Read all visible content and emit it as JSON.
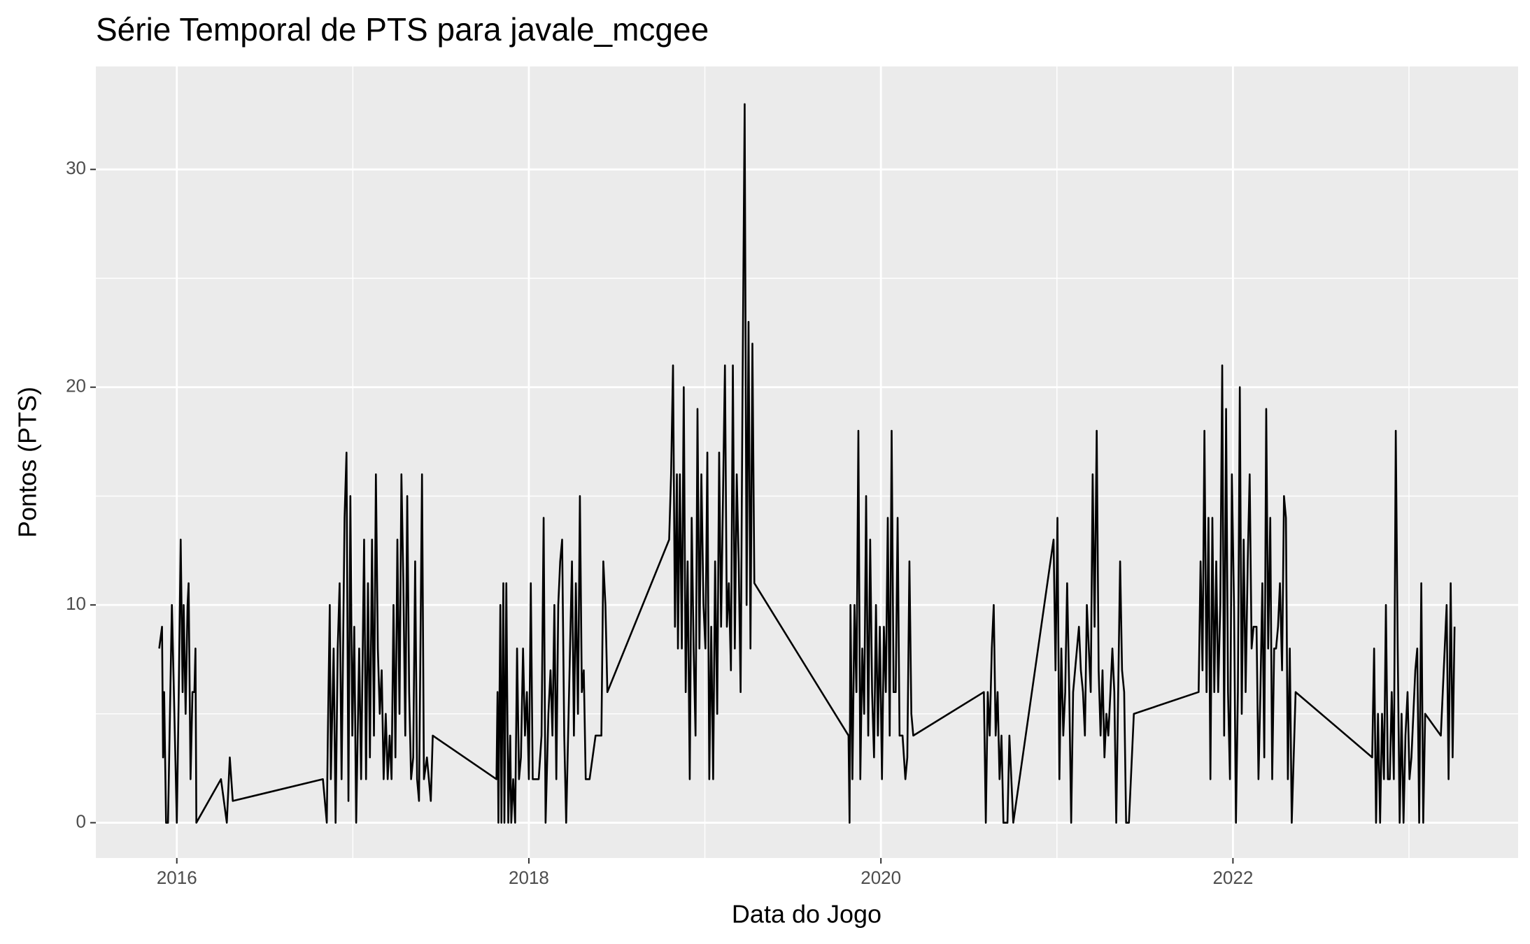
{
  "chart_data": {
    "type": "line",
    "title": "Série Temporal de PTS para javale_mcgee",
    "x_label": "Data do Jogo",
    "y_label": "Pontos (PTS)",
    "color": "#000000",
    "panel_background": "#ebebeb",
    "grid": true,
    "xlim": [
      2015.54,
      2023.62
    ],
    "ylim": [
      -1.62,
      34.73
    ],
    "xticks": [
      2016,
      2018,
      2020,
      2022
    ],
    "yticks": [
      0,
      10,
      20,
      30
    ],
    "x_minor_grid": [
      2017,
      2019,
      2021,
      2023
    ],
    "y_minor_grid": [
      5,
      15,
      25
    ],
    "x": [
      2015.9,
      2015.916,
      2015.922,
      2015.928,
      2015.939,
      2015.95,
      2015.972,
      2015.989,
      2016,
      2016.011,
      2016.022,
      2016.033,
      2016.039,
      2016.05,
      2016.061,
      2016.067,
      2016.078,
      2016.089,
      2016.1,
      2016.106,
      2016.111,
      2016.251,
      2016.284,
      2016.301,
      2016.318,
      2016.83,
      2016.852,
      2016.858,
      2016.869,
      2016.875,
      2016.891,
      2016.902,
      2016.914,
      2016.925,
      2016.936,
      2016.953,
      2016.964,
      2016.975,
      2016.986,
      2016.997,
      2017.008,
      2017.019,
      2017.036,
      2017.047,
      2017.064,
      2017.075,
      2017.086,
      2017.097,
      2017.109,
      2017.12,
      2017.131,
      2017.142,
      2017.153,
      2017.164,
      2017.175,
      2017.187,
      2017.198,
      2017.209,
      2017.22,
      2017.231,
      2017.242,
      2017.253,
      2017.265,
      2017.276,
      2017.287,
      2017.298,
      2017.309,
      2017.32,
      2017.331,
      2017.343,
      2017.354,
      2017.365,
      2017.376,
      2017.393,
      2017.404,
      2017.421,
      2017.443,
      2017.454,
      2017.816,
      2017.822,
      2017.827,
      2017.838,
      2017.844,
      2017.855,
      2017.861,
      2017.872,
      2017.883,
      2017.894,
      2017.9,
      2017.911,
      2017.922,
      2017.933,
      2017.944,
      2017.955,
      2017.967,
      2017.978,
      2017.989,
      2018,
      2018.011,
      2018.022,
      2018.033,
      2018.056,
      2018.072,
      2018.084,
      2018.095,
      2018.111,
      2018.123,
      2018.134,
      2018.145,
      2018.156,
      2018.167,
      2018.178,
      2018.189,
      2018.201,
      2018.212,
      2018.223,
      2018.234,
      2018.245,
      2018.256,
      2018.267,
      2018.279,
      2018.29,
      2018.301,
      2018.312,
      2018.323,
      2018.345,
      2018.379,
      2018.412,
      2018.423,
      2018.435,
      2018.446,
      2018.797,
      2018.808,
      2018.819,
      2018.83,
      2018.841,
      2018.847,
      2018.858,
      2018.869,
      2018.88,
      2018.891,
      2018.902,
      2018.914,
      2018.925,
      2018.936,
      2018.947,
      2018.958,
      2018.969,
      2018.98,
      2018.992,
      2019.003,
      2019.014,
      2019.025,
      2019.036,
      2019.047,
      2019.058,
      2019.07,
      2019.081,
      2019.092,
      2019.103,
      2019.114,
      2019.125,
      2019.136,
      2019.148,
      2019.159,
      2019.17,
      2019.181,
      2019.192,
      2019.203,
      2019.214,
      2019.226,
      2019.237,
      2019.248,
      2019.259,
      2019.27,
      2019.281,
      2019.816,
      2019.822,
      2019.827,
      2019.838,
      2019.85,
      2019.861,
      2019.872,
      2019.883,
      2019.894,
      2019.905,
      2019.916,
      2019.928,
      2019.939,
      2019.95,
      2019.961,
      2019.972,
      2019.983,
      2019.994,
      2020.006,
      2020.017,
      2020.028,
      2020.039,
      2020.05,
      2020.061,
      2020.072,
      2020.084,
      2020.095,
      2020.106,
      2020.123,
      2020.139,
      2020.15,
      2020.162,
      2020.173,
      2020.184,
      2020.585,
      2020.596,
      2020.607,
      2020.618,
      2020.63,
      2020.641,
      2020.652,
      2020.663,
      2020.674,
      2020.685,
      2020.696,
      2020.719,
      2020.73,
      2020.752,
      2020.981,
      2020.992,
      2021.003,
      2021.014,
      2021.025,
      2021.036,
      2021.047,
      2021.058,
      2021.07,
      2021.081,
      2021.092,
      2021.114,
      2021.125,
      2021.136,
      2021.148,
      2021.159,
      2021.17,
      2021.181,
      2021.192,
      2021.203,
      2021.214,
      2021.226,
      2021.237,
      2021.248,
      2021.259,
      2021.27,
      2021.281,
      2021.292,
      2021.304,
      2021.315,
      2021.326,
      2021.337,
      2021.348,
      2021.359,
      2021.37,
      2021.382,
      2021.393,
      2021.409,
      2021.437,
      2021.805,
      2021.816,
      2021.827,
      2021.838,
      2021.85,
      2021.861,
      2021.872,
      2021.883,
      2021.894,
      2021.905,
      2021.916,
      2021.928,
      2021.939,
      2021.95,
      2021.961,
      2021.972,
      2021.983,
      2021.994,
      2022.006,
      2022.017,
      2022.028,
      2022.039,
      2022.05,
      2022.061,
      2022.072,
      2022.084,
      2022.095,
      2022.106,
      2022.117,
      2022.134,
      2022.145,
      2022.156,
      2022.167,
      2022.178,
      2022.189,
      2022.2,
      2022.212,
      2022.223,
      2022.234,
      2022.245,
      2022.256,
      2022.267,
      2022.279,
      2022.29,
      2022.301,
      2022.312,
      2022.323,
      2022.334,
      2022.356,
      2022.791,
      2022.802,
      2022.813,
      2022.824,
      2022.836,
      2022.847,
      2022.858,
      2022.869,
      2022.88,
      2022.891,
      2022.902,
      2022.914,
      2022.925,
      2022.936,
      2022.947,
      2022.958,
      2022.969,
      2022.98,
      2022.992,
      2023.003,
      2023.014,
      2023.025,
      2023.036,
      2023.047,
      2023.058,
      2023.07,
      2023.081,
      2023.092,
      2023.181,
      2023.214,
      2023.225,
      2023.237,
      2023.248,
      2023.259
    ],
    "values": [
      8,
      9,
      3,
      6,
      0,
      0,
      10,
      4,
      0,
      6,
      13,
      6,
      10,
      5,
      10,
      11,
      2,
      6,
      6,
      8,
      0,
      2,
      0,
      3,
      1,
      2,
      0,
      4,
      10,
      2,
      8,
      0,
      8,
      11,
      2,
      14,
      17,
      1,
      15,
      4,
      9,
      0,
      8,
      2,
      13,
      2,
      11,
      3,
      13,
      4,
      16,
      8,
      5,
      7,
      2,
      5,
      2,
      4,
      2,
      10,
      3,
      13,
      5,
      16,
      11,
      4,
      15,
      6,
      2,
      3,
      12,
      2,
      1,
      16,
      2,
      3,
      1,
      4,
      2,
      6,
      0,
      10,
      0,
      11,
      0,
      11,
      0,
      4,
      0,
      2,
      0,
      8,
      2,
      3,
      8,
      4,
      6,
      2,
      11,
      2,
      2,
      2,
      4,
      14,
      0,
      5,
      7,
      4,
      10,
      2,
      10,
      12,
      13,
      4,
      0,
      4,
      8,
      12,
      4,
      11,
      5,
      15,
      6,
      7,
      2,
      2,
      4,
      4,
      12,
      10,
      6,
      13,
      16,
      21,
      9,
      16,
      8,
      16,
      8,
      20,
      6,
      12,
      2,
      14,
      8,
      4,
      19,
      8,
      16,
      10,
      8,
      17,
      2,
      9,
      2,
      12,
      5,
      17,
      9,
      15,
      21,
      9,
      11,
      7,
      21,
      8,
      16,
      12,
      6,
      20,
      33,
      10,
      23,
      8,
      22,
      11,
      4,
      0,
      10,
      2,
      10,
      6,
      18,
      2,
      8,
      5,
      15,
      4,
      13,
      6,
      3,
      10,
      4,
      9,
      2,
      9,
      6,
      14,
      4,
      18,
      6,
      6,
      14,
      4,
      4,
      2,
      3,
      12,
      5,
      4,
      6,
      0,
      6,
      4,
      8,
      10,
      4,
      6,
      2,
      4,
      0,
      0,
      4,
      0,
      13,
      7,
      14,
      2,
      8,
      4,
      6,
      11,
      6,
      0,
      6,
      8,
      9,
      7,
      6,
      4,
      10,
      8,
      6,
      16,
      9,
      18,
      7,
      4,
      7,
      3,
      5,
      4,
      6,
      8,
      6,
      0,
      6,
      12,
      7,
      6,
      0,
      0,
      5,
      6,
      12,
      7,
      18,
      6,
      14,
      2,
      14,
      6,
      12,
      6,
      10,
      21,
      4,
      19,
      6,
      2,
      16,
      10,
      0,
      6,
      20,
      5,
      13,
      6,
      12,
      16,
      8,
      9,
      9,
      2,
      6,
      11,
      3,
      19,
      8,
      14,
      2,
      8,
      8,
      9,
      11,
      7,
      15,
      14,
      2,
      8,
      0,
      6,
      3,
      8,
      0,
      5,
      0,
      5,
      2,
      10,
      2,
      2,
      6,
      2,
      18,
      8,
      0,
      5,
      0,
      4,
      6,
      2,
      3,
      5,
      7,
      8,
      0,
      11,
      0,
      5,
      4,
      10,
      2,
      11,
      3,
      9
    ]
  }
}
